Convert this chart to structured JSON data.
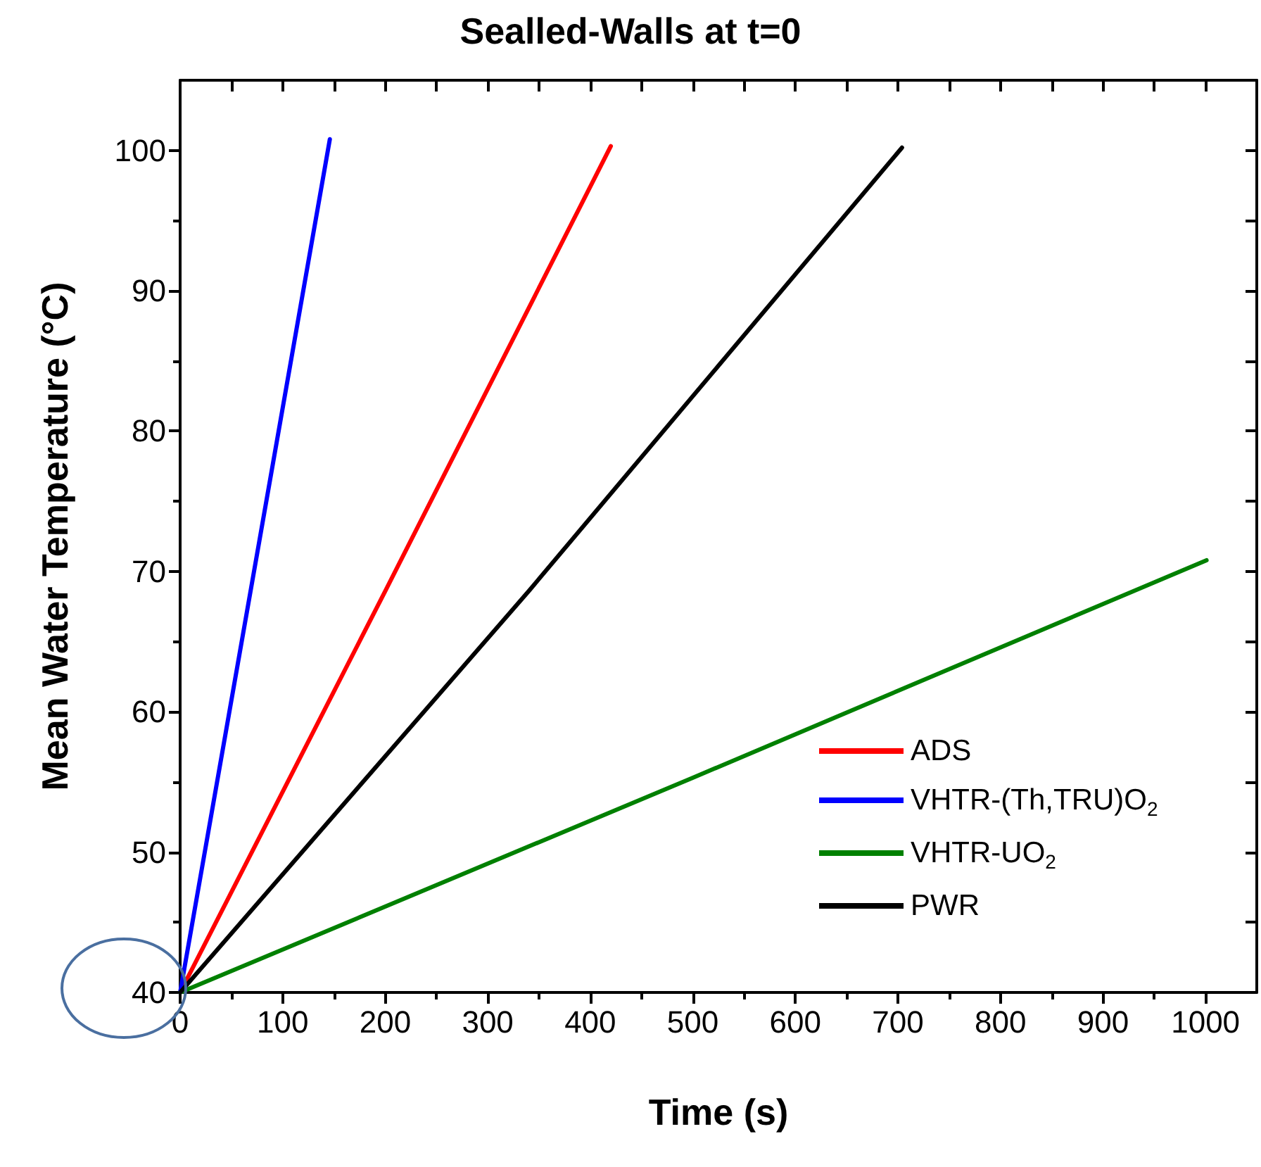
{
  "chart_data": {
    "type": "line",
    "title": "Sealled-Walls at t=0",
    "xlabel": "Time (s)",
    "ylabel": "Mean Water Temperature (°C)",
    "xlim": [
      0,
      1050
    ],
    "xticks": [
      0,
      100,
      200,
      300,
      400,
      500,
      600,
      700,
      800,
      900,
      1000
    ],
    "ylim": [
      40,
      105
    ],
    "yticks": [
      40,
      50,
      60,
      70,
      80,
      90,
      100
    ],
    "series": [
      {
        "name": "ADS",
        "color": "#ff0000",
        "x": [
          0,
          200,
          420
        ],
        "values": [
          40,
          68.6,
          100.3
        ]
      },
      {
        "name": "VHTR-(Th,TRU)O$_{2}$",
        "color": "#0000ff",
        "x": [
          0,
          146
        ],
        "values": [
          40,
          100.8
        ]
      },
      {
        "name": "VHTR-UO$_{2}$",
        "color": "#008000",
        "x": [
          0,
          500,
          1001
        ],
        "values": [
          40,
          55.3,
          70.8
        ]
      },
      {
        "name": "PWR",
        "color": "#000000",
        "x": [
          0,
          340,
          704
        ],
        "values": [
          40,
          68.6,
          100.2
        ]
      }
    ],
    "legend": "bottom right",
    "marker": "none",
    "line_style": "solid",
    "grid": false
  }
}
